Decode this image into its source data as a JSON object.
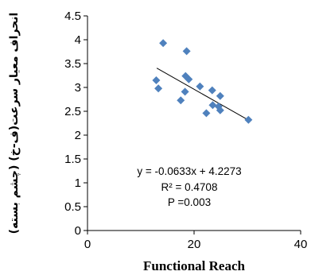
{
  "chart_data": {
    "type": "scatter",
    "xlabel": "Functional Reach",
    "ylabel": "انحراف معیار سرعت(ف-خ) (چشم بسته)",
    "xlim": [
      0,
      40
    ],
    "ylim": [
      0,
      4.5
    ],
    "x_ticks": [
      0,
      20,
      40
    ],
    "y_ticks": [
      0,
      0.5,
      1,
      1.5,
      2,
      2.5,
      3,
      3.5,
      4,
      4.5
    ],
    "grid": false,
    "marker": "diamond",
    "marker_color": "#4f81bd",
    "trendline": {
      "slope": -0.0633,
      "intercept": 4.2273,
      "x_range": [
        13,
        30.5
      ],
      "color": "#000000"
    },
    "annotations": [
      "y = -0.0633x + 4.2273",
      "R² = 0.4708",
      "P =0.003"
    ],
    "points": [
      {
        "x": 14.2,
        "y": 3.93
      },
      {
        "x": 18.6,
        "y": 3.76
      },
      {
        "x": 12.9,
        "y": 3.15
      },
      {
        "x": 13.3,
        "y": 2.98
      },
      {
        "x": 18.4,
        "y": 3.24
      },
      {
        "x": 19.0,
        "y": 3.17
      },
      {
        "x": 21.1,
        "y": 3.02
      },
      {
        "x": 23.4,
        "y": 2.94
      },
      {
        "x": 18.3,
        "y": 2.91
      },
      {
        "x": 24.9,
        "y": 2.82
      },
      {
        "x": 17.5,
        "y": 2.73
      },
      {
        "x": 23.5,
        "y": 2.63
      },
      {
        "x": 24.6,
        "y": 2.6
      },
      {
        "x": 24.9,
        "y": 2.52
      },
      {
        "x": 22.3,
        "y": 2.46
      },
      {
        "x": 30.2,
        "y": 2.32
      }
    ]
  }
}
